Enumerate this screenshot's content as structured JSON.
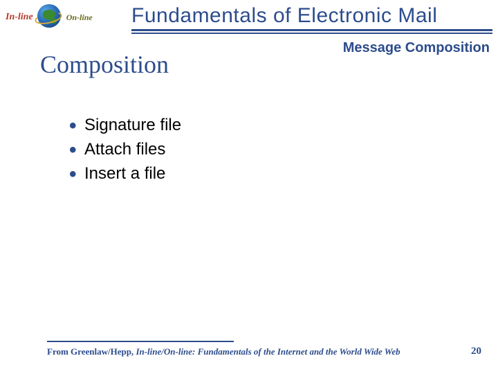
{
  "colors": {
    "title_blue": "#2c4c8c",
    "text_black": "#000000",
    "inline_red": "#b83a2a",
    "online_olive": "#6a6a1a"
  },
  "logo": {
    "inline_label": "In-line",
    "online_label": "On-line"
  },
  "header": {
    "main_title": "Fundamentals of Electronic Mail",
    "subtitle_right": "Message Composition"
  },
  "section": {
    "title": "Composition"
  },
  "bullets": [
    "Signature file",
    "Attach files",
    "Insert a file"
  ],
  "footer": {
    "authors": "From Greenlaw/Hepp, ",
    "book_title": "In-line/On-line: Fundamentals of the Internet and the World Wide Web",
    "page_number": "20"
  },
  "typography": {
    "main_title_fontsize": 30,
    "section_title_fontsize": 36,
    "bullet_fontsize": 24,
    "subtitle_fontsize": 20,
    "footer_fontsize": 13
  }
}
